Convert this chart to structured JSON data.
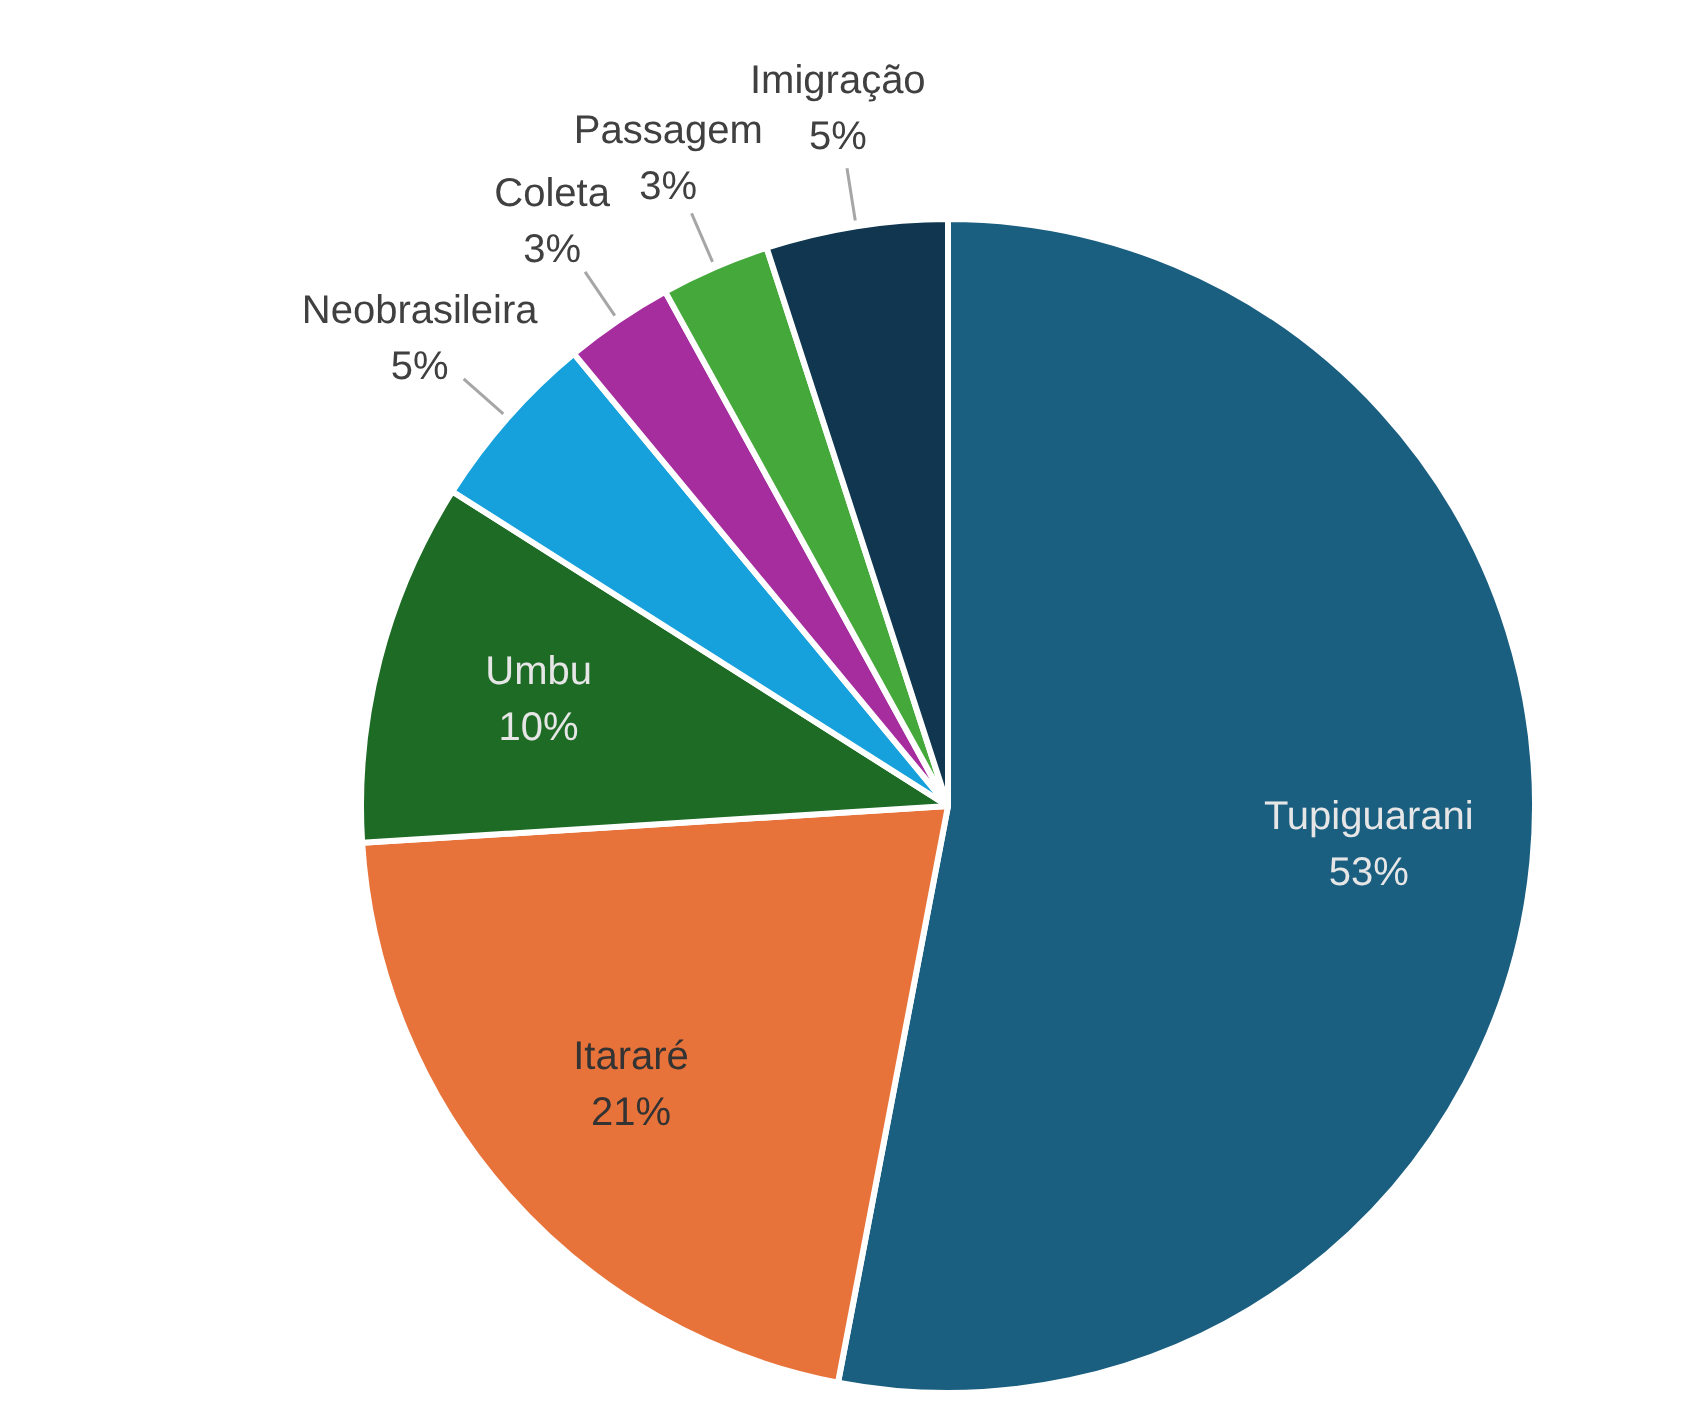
{
  "chart_data": {
    "type": "pie",
    "categories": [
      "Tupiguarani",
      "Itararé",
      "Umbu",
      "Neobrasileira",
      "Coleta",
      "Passagem",
      "Imigração"
    ],
    "values": [
      53,
      21,
      10,
      5,
      3,
      3,
      5
    ],
    "colors": [
      "#1a5e80",
      "#e8733a",
      "#1e6b25",
      "#16a1dc",
      "#a52d9e",
      "#44a83a",
      "#10374f"
    ],
    "value_labels": [
      "53%",
      "21%",
      "10%",
      "5%",
      "3%",
      "3%",
      "5%"
    ],
    "legend": false
  }
}
